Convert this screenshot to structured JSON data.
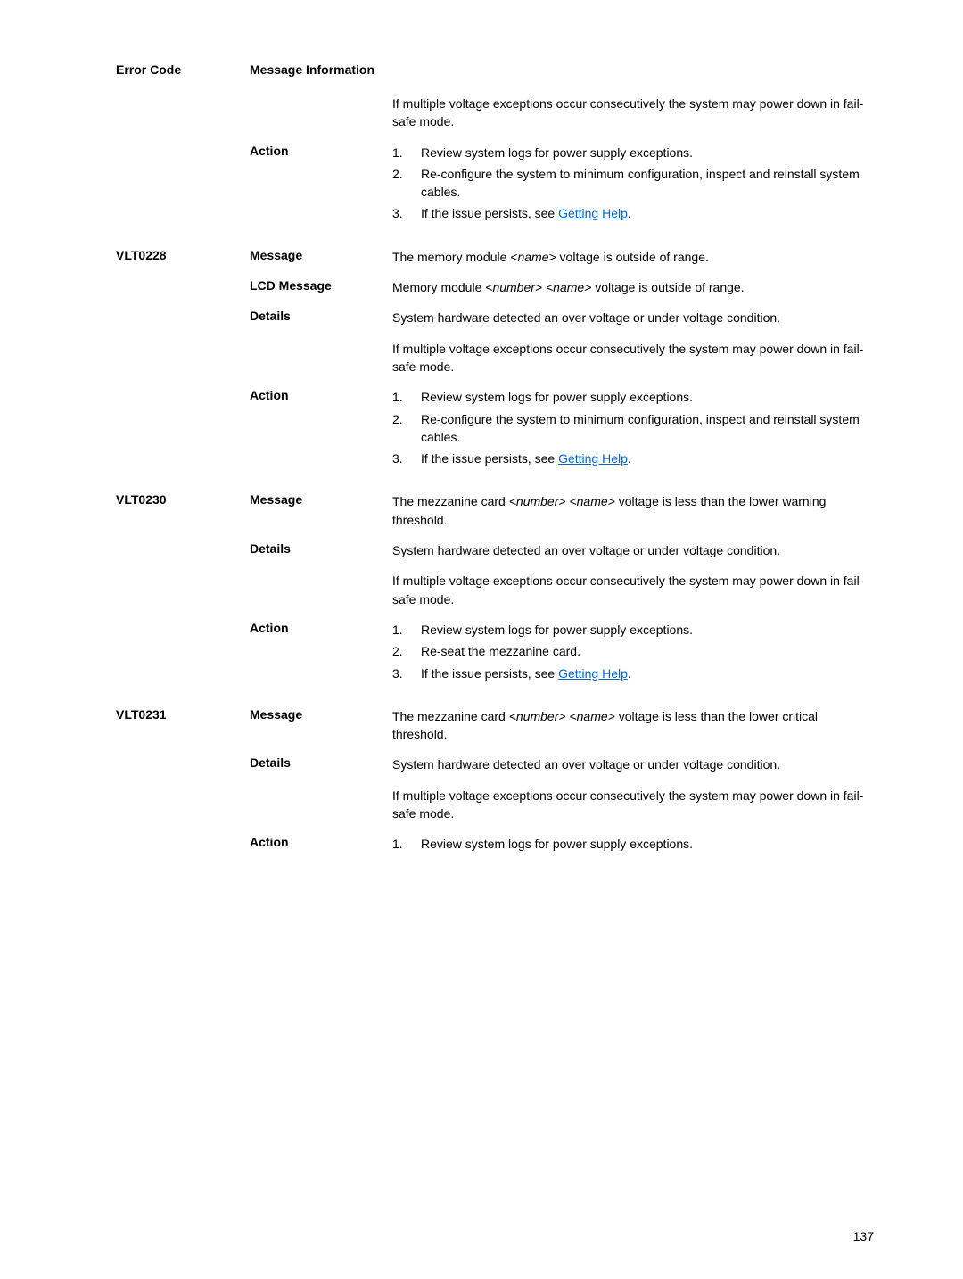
{
  "header": {
    "error_code_label": "Error Code",
    "message_info_label": "Message Information"
  },
  "intro": {
    "text": "If multiple voltage exceptions occur consecutively the system may power down in fail-safe mode."
  },
  "labels": {
    "action": "Action",
    "message": "Message",
    "lcd_message": "LCD Message",
    "details": "Details"
  },
  "block1": {
    "action_items": [
      "Review system logs for power supply exceptions.",
      "Re-configure the system to minimum configuration, inspect and reinstall system cables.",
      "If the issue persists, see "
    ],
    "link_text": "Getting Help"
  },
  "vlt0228": {
    "code": "VLT0228",
    "message_pre": "The memory module ",
    "message_var": "<name>",
    "message_post": " voltage is outside of range.",
    "lcd_pre": "Memory module ",
    "lcd_var1": "<number>",
    "lcd_mid": " ",
    "lcd_var2": "<name>",
    "lcd_post": " voltage is outside of range.",
    "details": "System hardware detected an over voltage or under voltage condition.",
    "details2": "If multiple voltage exceptions occur consecutively the system may power down in fail-safe mode.",
    "action_items": [
      "Review system logs for power supply exceptions.",
      "Re-configure the system to minimum configuration, inspect and reinstall system cables.",
      "If the issue persists, see "
    ],
    "link_text": "Getting Help"
  },
  "vlt0230": {
    "code": "VLT0230",
    "message_pre": "The mezzanine card ",
    "message_var1": "<number>",
    "message_mid": " ",
    "message_var2": "<name>",
    "message_post": " voltage is less than the lower warning threshold.",
    "details": "System hardware detected an over voltage or under voltage condition.",
    "details2": "If multiple voltage exceptions occur consecutively the system may power down in fail-safe mode.",
    "action_items": [
      "Review system logs for power supply exceptions.",
      "Re-seat the mezzanine card.",
      "If the issue persists, see "
    ],
    "link_text": "Getting Help"
  },
  "vlt0231": {
    "code": "VLT0231",
    "message_pre": "The mezzanine card ",
    "message_var1": "<number>",
    "message_mid": " ",
    "message_var2": "<name>",
    "message_post": " voltage is less than the lower critical threshold.",
    "details": "System hardware detected an over voltage or under voltage condition.",
    "details2": "If multiple voltage exceptions occur consecutively the system may power down in fail-safe mode.",
    "action_items": [
      "Review system logs for power supply exceptions."
    ]
  },
  "page_number": "137"
}
